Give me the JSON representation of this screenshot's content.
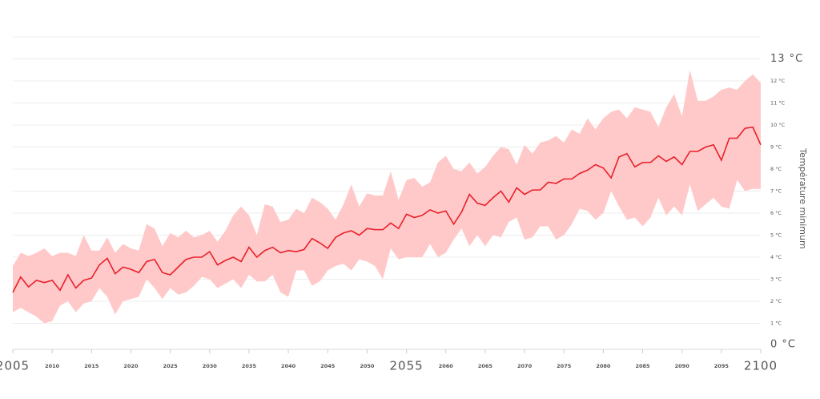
{
  "chart_data": {
    "type": "line",
    "y_label": "Température minimum",
    "x": [
      2005,
      2006,
      2007,
      2008,
      2009,
      2010,
      2011,
      2012,
      2013,
      2014,
      2015,
      2016,
      2017,
      2018,
      2019,
      2020,
      2021,
      2022,
      2023,
      2024,
      2025,
      2026,
      2027,
      2028,
      2029,
      2030,
      2031,
      2032,
      2033,
      2034,
      2035,
      2036,
      2037,
      2038,
      2039,
      2040,
      2041,
      2042,
      2043,
      2044,
      2045,
      2046,
      2047,
      2048,
      2049,
      2050,
      2051,
      2052,
      2053,
      2054,
      2055,
      2056,
      2057,
      2058,
      2059,
      2060,
      2061,
      2062,
      2063,
      2064,
      2065,
      2066,
      2067,
      2068,
      2069,
      2070,
      2071,
      2072,
      2073,
      2074,
      2075,
      2076,
      2077,
      2078,
      2079,
      2080,
      2081,
      2082,
      2083,
      2084,
      2085,
      2086,
      2087,
      2088,
      2089,
      2090,
      2091,
      2092,
      2093,
      2094,
      2095,
      2096,
      2097,
      2098,
      2099,
      2100
    ],
    "series": [
      {
        "color": "#e8202a",
        "values": [
          2.4,
          3.1,
          2.65,
          2.95,
          2.85,
          2.95,
          2.5,
          3.2,
          2.6,
          2.95,
          3.05,
          3.65,
          3.95,
          3.25,
          3.55,
          3.45,
          3.3,
          3.8,
          3.9,
          3.3,
          3.2,
          3.55,
          3.9,
          4.0,
          4.0,
          4.25,
          3.65,
          3.85,
          4.0,
          3.8,
          4.45,
          4.0,
          4.3,
          4.45,
          4.2,
          4.3,
          4.25,
          4.35,
          4.85,
          4.65,
          4.4,
          4.9,
          5.1,
          5.2,
          5.0,
          5.3,
          5.25,
          5.25,
          5.55,
          5.3,
          5.95,
          5.8,
          5.9,
          6.15,
          6.0,
          6.1,
          5.5,
          6.05,
          6.85,
          6.45,
          6.35,
          6.7,
          7.0,
          6.5,
          7.15,
          6.85,
          7.05,
          7.05,
          7.4,
          7.35,
          7.55,
          7.55,
          7.8,
          7.95,
          8.2,
          8.05,
          7.6,
          8.55,
          8.7,
          8.1,
          8.3,
          8.3,
          8.6,
          8.35,
          8.55,
          8.2,
          8.8,
          8.8,
          9.0,
          9.1,
          8.4,
          9.4,
          9.4,
          9.85,
          9.9,
          9.1
        ]
      }
    ],
    "band": {
      "color": "#ffc9c9",
      "upper": [
        3.6,
        4.2,
        4.05,
        4.2,
        4.4,
        4.05,
        4.2,
        4.2,
        4.05,
        5.0,
        4.3,
        4.3,
        4.9,
        4.2,
        4.6,
        4.4,
        4.3,
        5.5,
        5.3,
        4.5,
        5.1,
        4.9,
        5.2,
        4.9,
        5.0,
        5.2,
        4.7,
        5.2,
        5.9,
        6.3,
        5.9,
        5.0,
        6.4,
        6.3,
        5.6,
        5.7,
        6.2,
        6.0,
        6.7,
        6.5,
        6.2,
        5.7,
        6.4,
        7.3,
        6.3,
        6.9,
        6.8,
        6.8,
        7.9,
        6.6,
        7.5,
        7.6,
        7.2,
        7.4,
        8.3,
        8.6,
        8.0,
        7.9,
        8.3,
        7.8,
        8.1,
        8.6,
        9.0,
        8.9,
        8.2,
        9.1,
        8.7,
        9.2,
        9.3,
        9.5,
        9.2,
        9.8,
        9.6,
        10.3,
        9.8,
        10.3,
        10.6,
        10.7,
        10.3,
        10.8,
        10.7,
        10.6,
        9.9,
        10.8,
        11.4,
        10.4,
        12.5,
        11.1,
        11.1,
        11.3,
        11.6,
        11.7,
        11.6,
        12.0,
        12.3,
        11.9
      ],
      "lower": [
        1.5,
        1.7,
        1.5,
        1.3,
        1.0,
        1.1,
        1.8,
        2.0,
        1.5,
        1.9,
        2.0,
        2.6,
        2.2,
        1.4,
        2.0,
        2.1,
        2.2,
        3.0,
        2.6,
        2.1,
        2.6,
        2.3,
        2.4,
        2.7,
        3.1,
        3.0,
        2.6,
        2.8,
        3.0,
        2.6,
        3.2,
        2.9,
        2.9,
        3.2,
        2.4,
        2.2,
        3.4,
        3.4,
        2.7,
        2.9,
        3.4,
        3.6,
        3.7,
        3.4,
        3.9,
        3.8,
        3.6,
        3.0,
        4.4,
        3.9,
        4.0,
        4.0,
        4.0,
        4.6,
        4.0,
        4.2,
        4.8,
        5.3,
        4.5,
        5.0,
        4.5,
        5.0,
        4.9,
        5.6,
        5.8,
        4.8,
        4.9,
        5.4,
        5.4,
        4.8,
        5.0,
        5.5,
        6.2,
        6.1,
        5.7,
        6.0,
        7.0,
        6.3,
        5.7,
        5.8,
        5.4,
        5.8,
        6.7,
        5.9,
        6.3,
        5.9,
        7.3,
        6.1,
        6.4,
        6.7,
        6.3,
        6.2,
        7.5,
        7.0,
        7.1,
        7.1
      ]
    },
    "xlim": [
      2005,
      2100
    ],
    "xticks": [
      2005,
      2010,
      2015,
      2020,
      2025,
      2030,
      2035,
      2040,
      2045,
      2050,
      2055,
      2060,
      2065,
      2070,
      2075,
      2080,
      2085,
      2090,
      2095,
      2100
    ],
    "ylim": [
      0,
      14
    ],
    "yticks": [
      {
        "value": 0,
        "label": "0 °C"
      },
      {
        "value": 1,
        "label": "1 °C"
      },
      {
        "value": 2,
        "label": "2 °C"
      },
      {
        "value": 3,
        "label": "3 °C"
      },
      {
        "value": 4,
        "label": "4 °C"
      },
      {
        "value": 5,
        "label": "5 °C"
      },
      {
        "value": 6,
        "label": "6 °C"
      },
      {
        "value": 7,
        "label": "7 °C"
      },
      {
        "value": 8,
        "label": "8 °C"
      },
      {
        "value": 9,
        "label": "9 °C"
      },
      {
        "value": 10,
        "label": "10 °C"
      },
      {
        "value": 11,
        "label": "11 °C"
      },
      {
        "value": 12,
        "label": "12 °C"
      },
      {
        "value": 13,
        "label": "13 °C"
      }
    ],
    "grid": true
  }
}
